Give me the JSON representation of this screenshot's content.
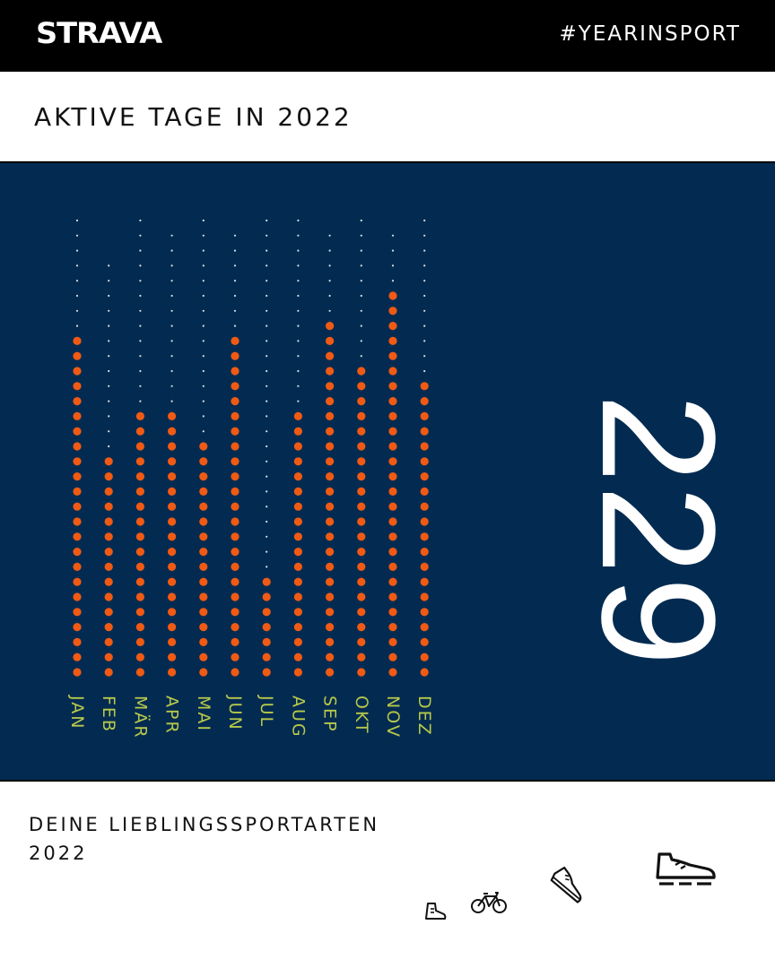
{
  "header": {
    "logo": "STRAVA",
    "hashtag": "#YEARINSPORT"
  },
  "title": "AKTIVE TAGE IN 2022",
  "total": "229",
  "colors": {
    "panel_bg": "#032B51",
    "active_dot": "#F05A14",
    "empty_dot": "#D8DEE6",
    "month_label": "#B7C84A"
  },
  "chart_data": {
    "type": "bar",
    "categories": [
      "JAN",
      "FEB",
      "MÄR",
      "APR",
      "MAI",
      "JUN",
      "JUL",
      "AUG",
      "SEP",
      "OKT",
      "NOV",
      "DEZ"
    ],
    "values": [
      23,
      15,
      18,
      18,
      16,
      23,
      7,
      18,
      24,
      21,
      26,
      20
    ],
    "days_in_month": [
      31,
      28,
      31,
      30,
      31,
      30,
      31,
      31,
      30,
      31,
      30,
      31
    ],
    "title": "AKTIVE TAGE IN 2022",
    "xlabel": "",
    "ylabel": ""
  },
  "favorites": {
    "title": "DEINE LIEBLINGSSPORTARTEN 2022",
    "sports": [
      {
        "icon": "hiking-boot-icon",
        "color": "#7ED3E0"
      },
      {
        "icon": "bicycle-icon",
        "color": "#B7C84A"
      },
      {
        "icon": "running-shoe-icon",
        "color": "#F8A6E6"
      },
      {
        "icon": "running-shoe-icon",
        "color": "#FF5A0A"
      }
    ]
  }
}
